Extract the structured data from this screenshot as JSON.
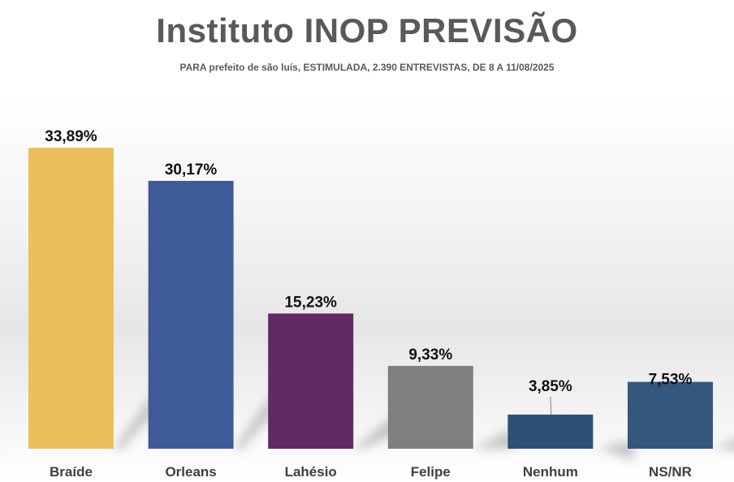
{
  "chart_data": {
    "type": "bar",
    "title": "Instituto INOP PREVISÃO",
    "subtitle": "PARA prefeito de são luís, ESTIMULADA, 2.390 ENTREVISTAS, DE 8 A 11/08/2025",
    "categories": [
      "Braíde",
      "Orleans",
      "Lahésio",
      "Felipe",
      "Nenhum",
      "NS/NR"
    ],
    "values": [
      33.89,
      30.17,
      15.23,
      9.33,
      3.85,
      7.53
    ],
    "value_labels": [
      "33,89%",
      "30,17%",
      "15,23%",
      "9,33%",
      "3,85%",
      "7,53%"
    ],
    "colors": [
      "#EBC05A",
      "#3F5B97",
      "#612A62",
      "#7F7F7F",
      "#2F5076",
      "#34577E"
    ],
    "xlabel": "",
    "ylabel": "",
    "ylim": [
      0,
      34
    ],
    "grid": false,
    "legend": "none"
  }
}
